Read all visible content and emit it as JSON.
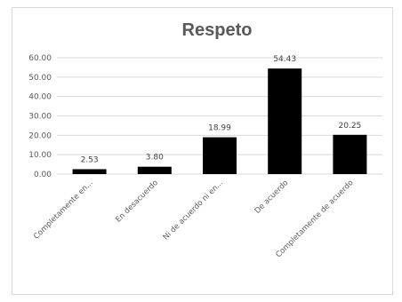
{
  "chart_data": {
    "type": "bar",
    "title": "Respeto",
    "categories": [
      "Completamente en...",
      "En desacuerdo",
      "Ni de acuerdo ni en...",
      "De acuerdo",
      "Completamente de acuerdo"
    ],
    "values": [
      2.53,
      3.8,
      18.99,
      54.43,
      20.25
    ],
    "data_labels": [
      "2.53",
      "3.80",
      "18.99",
      "54.43",
      "20.25"
    ],
    "ylim": [
      0,
      60
    ],
    "yticks": [
      0,
      10,
      20,
      30,
      40,
      50,
      60
    ],
    "ytick_labels": [
      "0.00",
      "10.00",
      "20.00",
      "30.00",
      "40.00",
      "50.00",
      "60.00"
    ],
    "xlabel": "",
    "ylabel": "",
    "grid": true,
    "legend": "none",
    "colors": {
      "bar": "#000000",
      "grid": "#d9d9d9",
      "text": "#595959"
    }
  }
}
